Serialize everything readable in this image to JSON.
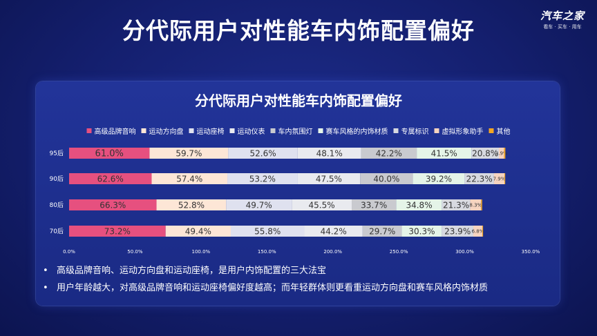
{
  "header": {
    "title": "分代际用户对性能车内饰配置偏好",
    "brand_name": "汽车之家",
    "brand_tagline": "看车 · 买车 · 用车"
  },
  "chart_data": {
    "type": "bar",
    "orientation": "horizontal",
    "stacked": true,
    "title": "分代际用户对性能车内饰配置偏好",
    "categories": [
      "95后",
      "90后",
      "80后",
      "70后"
    ],
    "xlim": [
      0,
      350
    ],
    "xticks": [
      "0.0%",
      "50.0%",
      "100.0%",
      "150.0%",
      "200.0%",
      "250.0%",
      "300.0%",
      "350.0%"
    ],
    "legend_position": "top",
    "grid": false,
    "series": [
      {
        "name": "高级品牌音响",
        "color": "#e6507f",
        "values": [
          61.0,
          62.6,
          66.3,
          73.2
        ],
        "labels": [
          "61.0%",
          "62.6%",
          "66.3%",
          "73.2%"
        ]
      },
      {
        "name": "运动方向盘",
        "color": "#fde6d6",
        "values": [
          59.7,
          57.4,
          52.8,
          49.4
        ],
        "labels": [
          "59.7%",
          "57.4%",
          "52.8%",
          "49.4%"
        ]
      },
      {
        "name": "运动座椅",
        "color": "#dfe1ef",
        "values": [
          52.6,
          53.2,
          49.7,
          55.8
        ],
        "labels": [
          "52.6%",
          "53.2%",
          "49.7%",
          "55.8%"
        ]
      },
      {
        "name": "运动仪表",
        "color": "#e9eaef",
        "values": [
          48.1,
          47.5,
          45.5,
          44.2
        ],
        "labels": [
          "48.1%",
          "47.5%",
          "45.5%",
          "44.2%"
        ]
      },
      {
        "name": "车内氛围灯",
        "color": "#c9cacf",
        "values": [
          42.2,
          40.0,
          33.7,
          29.7
        ],
        "labels": [
          "42.2%",
          "40.0%",
          "33.7%",
          "29.7%"
        ]
      },
      {
        "name": "赛车风格的内饰材质",
        "color": "#e5f4e8",
        "values": [
          41.5,
          39.2,
          34.8,
          30.3
        ],
        "labels": [
          "41.5%",
          "39.2%",
          "34.8%",
          "30.3%"
        ]
      },
      {
        "name": "专属标识",
        "color": "#d7d9e0",
        "values": [
          20.8,
          22.3,
          21.3,
          23.9
        ],
        "labels": [
          "20.8%",
          "22.3%",
          "21.3%",
          "23.9%"
        ]
      },
      {
        "name": "虚拟形象助手",
        "color": "#f6d4c0",
        "values": [
          3.9,
          7.9,
          8.3,
          6.8
        ],
        "labels": [
          "3.9%",
          "7.9%",
          "8.3%",
          "6.8%"
        ]
      },
      {
        "name": "其他",
        "color": "#f3a623",
        "values": [
          1.0,
          0.6,
          0.8,
          0.6
        ],
        "labels": [
          "",
          "",
          "",
          ""
        ]
      }
    ]
  },
  "notes": [
    "高级品牌音响、运动方向盘和运动座椅，是用户内饰配置的三大法宝",
    "用户年龄越大，对高级品牌音响和运动座椅偏好度越高；而年轻群体则更看重运动方向盘和赛车风格内饰材质"
  ]
}
